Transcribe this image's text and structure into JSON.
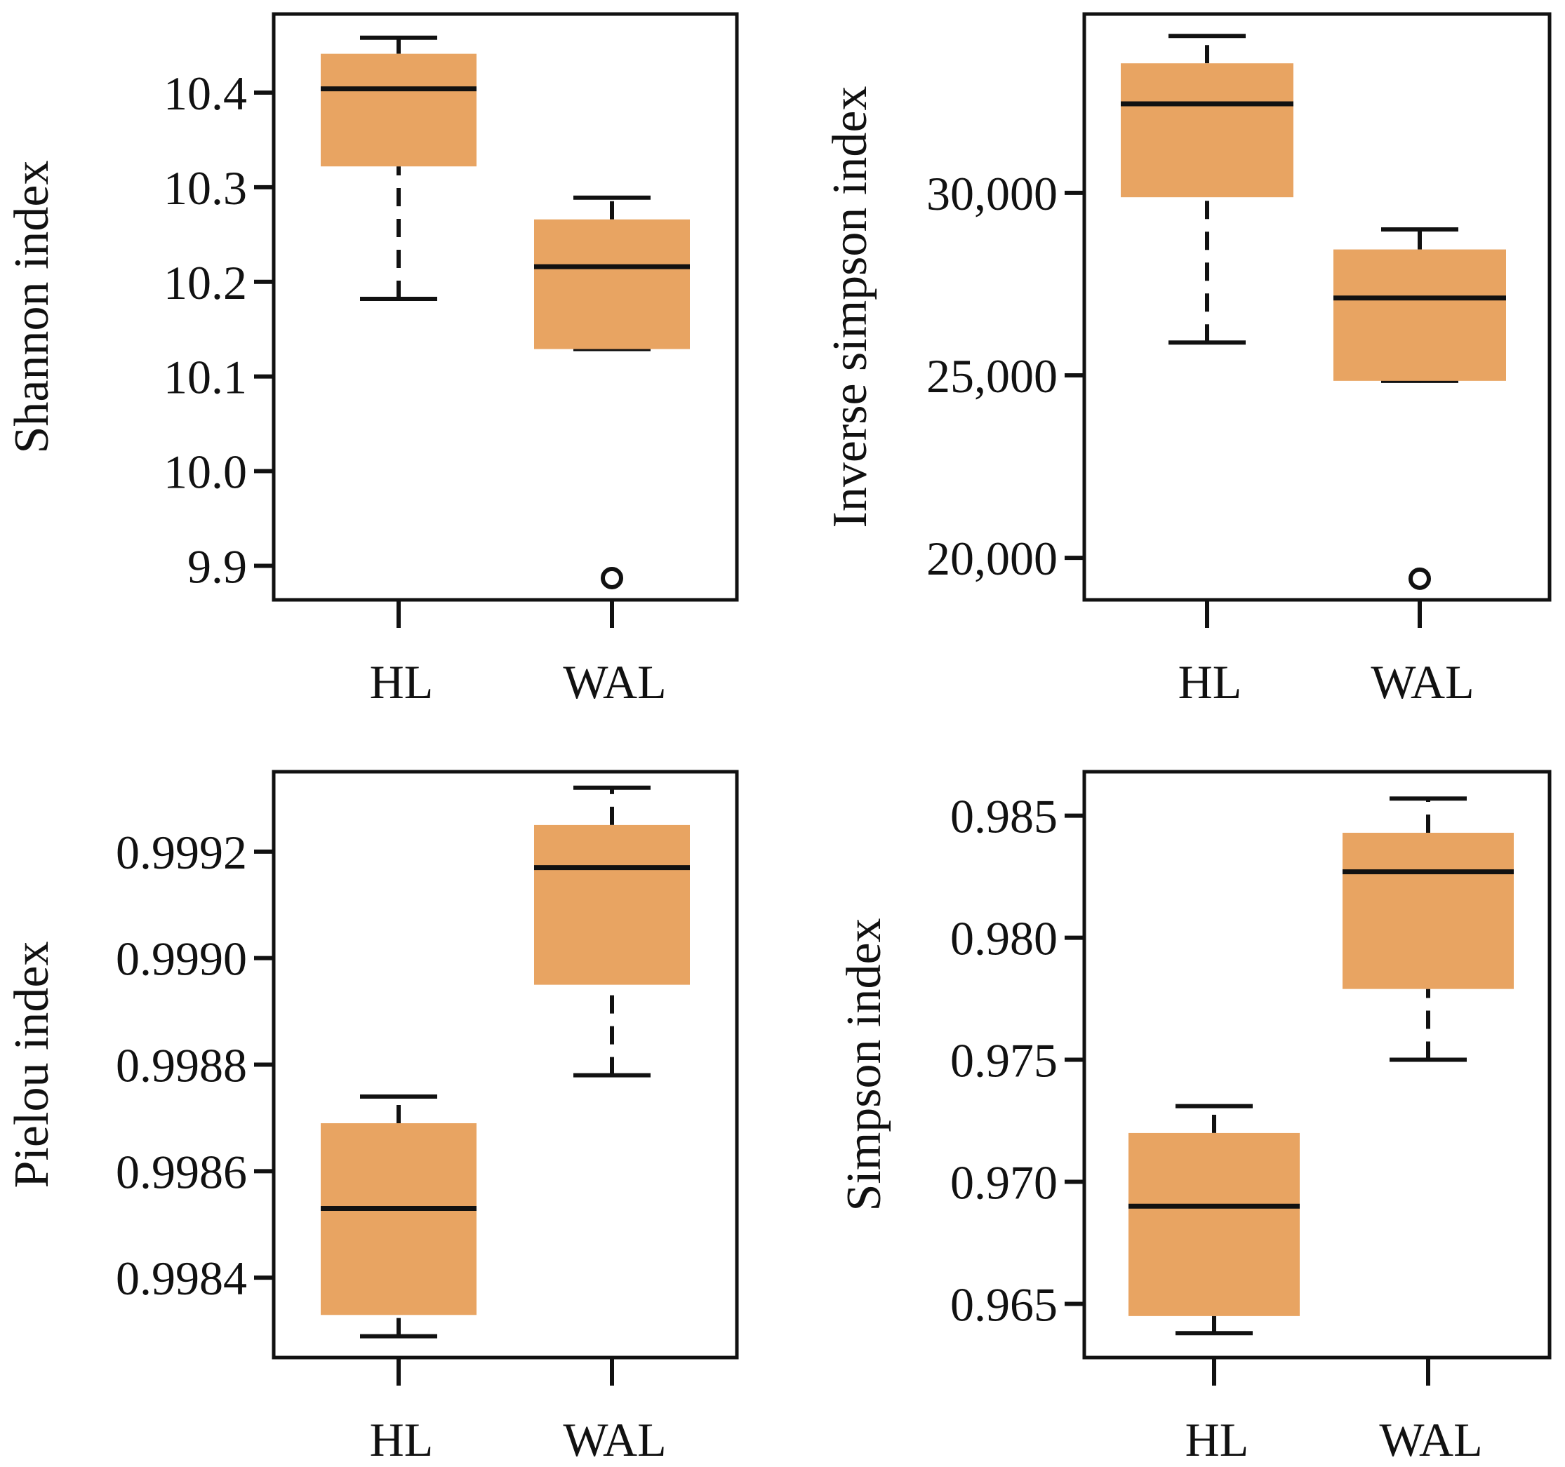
{
  "colors": {
    "box_fill": "#E8A462",
    "line": "#111111",
    "background": "#ffffff"
  },
  "chart_data": [
    {
      "type": "boxplot",
      "ylabel": "Shannon index",
      "categories": [
        "HL",
        "WAL"
      ],
      "yticks": [
        "9.9",
        "10.0",
        "10.1",
        "10.2",
        "10.3",
        "10.4"
      ],
      "ylim": [
        9.864,
        10.483
      ],
      "boxes": [
        {
          "name": "HL",
          "whisker_low": 10.182,
          "q1": 10.322,
          "median": 10.404,
          "q3": 10.441,
          "whisker_high": 10.458,
          "outliers": []
        },
        {
          "name": "WAL",
          "whisker_low": 10.129,
          "q1": 10.129,
          "median": 10.216,
          "q3": 10.266,
          "whisker_high": 10.289,
          "outliers": [
            9.887
          ]
        }
      ]
    },
    {
      "type": "boxplot",
      "ylabel": "Inverse simpson index",
      "categories": [
        "HL",
        "WAL"
      ],
      "yticks": [
        "20,000",
        "25,000",
        "30,000"
      ],
      "ylim": [
        18850,
        34900
      ],
      "boxes": [
        {
          "name": "HL",
          "whisker_low": 25900,
          "q1": 29880,
          "median": 32440,
          "q3": 33550,
          "whisker_high": 34300,
          "outliers": []
        },
        {
          "name": "WAL",
          "whisker_low": 24850,
          "q1": 24850,
          "median": 27120,
          "q3": 28450,
          "whisker_high": 29000,
          "outliers": [
            19430
          ]
        }
      ]
    },
    {
      "type": "boxplot",
      "ylabel": "Pielou index",
      "categories": [
        "HL",
        "WAL"
      ],
      "yticks": [
        "0.9984",
        "0.9986",
        "0.9988",
        "0.9990",
        "0.9992"
      ],
      "ylim": [
        0.99825,
        0.99935
      ],
      "boxes": [
        {
          "name": "HL",
          "whisker_low": 0.99829,
          "q1": 0.99833,
          "median": 0.99853,
          "q3": 0.99869,
          "whisker_high": 0.99874,
          "outliers": []
        },
        {
          "name": "WAL",
          "whisker_low": 0.99878,
          "q1": 0.99895,
          "median": 0.99917,
          "q3": 0.99925,
          "whisker_high": 0.99932,
          "outliers": []
        }
      ]
    },
    {
      "type": "boxplot",
      "ylabel": "Simpson index",
      "categories": [
        "HL",
        "WAL"
      ],
      "yticks": [
        "0.965",
        "0.970",
        "0.975",
        "0.980",
        "0.985"
      ],
      "ylim": [
        0.9628,
        0.9868
      ],
      "boxes": [
        {
          "name": "HL",
          "whisker_low": 0.9638,
          "q1": 0.9645,
          "median": 0.969,
          "q3": 0.972,
          "whisker_high": 0.9731,
          "outliers": []
        },
        {
          "name": "WAL",
          "whisker_low": 0.975,
          "q1": 0.9779,
          "median": 0.9827,
          "q3": 0.9843,
          "whisker_high": 0.9857,
          "outliers": []
        }
      ]
    }
  ]
}
